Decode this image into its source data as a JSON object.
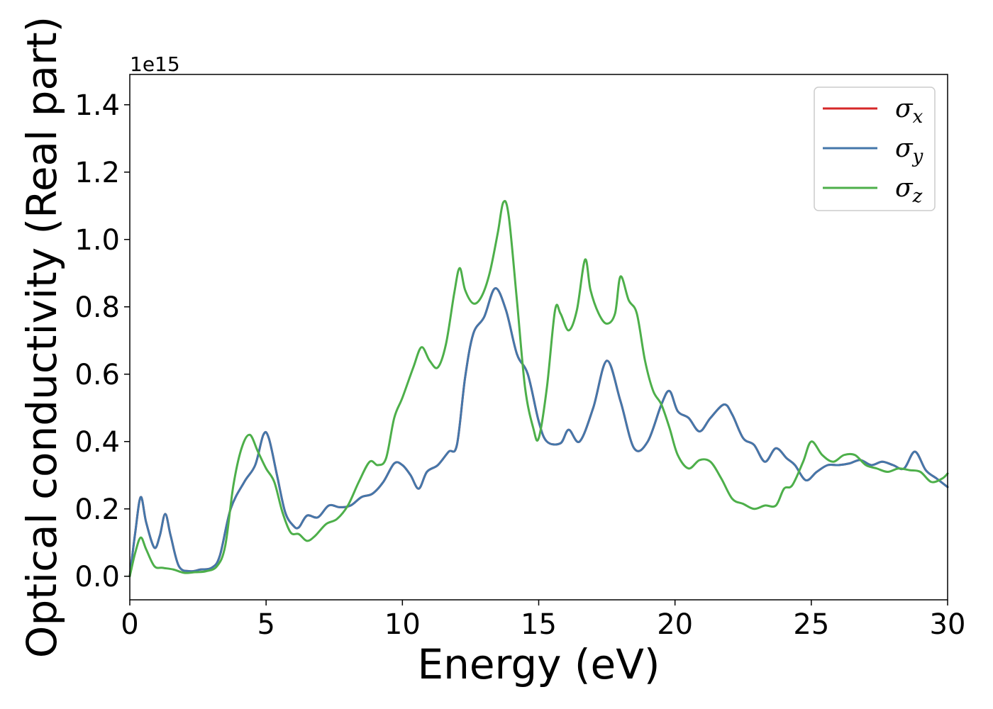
{
  "chart_data": {
    "type": "line",
    "title": "",
    "xlabel": "Energy (eV)",
    "ylabel": "Optical conductivity (Real part)",
    "y_offset_label": "1e15",
    "xlim": [
      0,
      30
    ],
    "ylim": [
      -0.07,
      1.49
    ],
    "x_ticks": [
      0,
      5,
      10,
      15,
      20,
      25,
      30
    ],
    "x_tick_labels": [
      "0",
      "5",
      "10",
      "15",
      "20",
      "25",
      "30"
    ],
    "y_ticks": [
      0.0,
      0.2,
      0.4,
      0.6,
      0.8,
      1.0,
      1.2,
      1.4
    ],
    "y_tick_labels": [
      "0.0",
      "0.2",
      "0.4",
      "0.6",
      "0.8",
      "1.0",
      "1.2",
      "1.4"
    ],
    "grid": false,
    "legend_position": "top-right",
    "series": [
      {
        "name": "σx",
        "legend_symbol": "σ",
        "legend_sub": "x",
        "color": "#d62728",
        "x": [
          0,
          0.2,
          0.4,
          0.6,
          0.9,
          1.1,
          1.3,
          1.5,
          1.8,
          2.2,
          2.6,
          3.0,
          3.3,
          3.7,
          4.2,
          4.6,
          4.9,
          5.1,
          5.4,
          5.7,
          6.0,
          6.2,
          6.5,
          6.9,
          7.3,
          7.7,
          8.1,
          8.5,
          8.9,
          9.3,
          9.7,
          10.0,
          10.3,
          10.6,
          10.9,
          11.3,
          11.7,
          12.0,
          12.3,
          12.6,
          13.0,
          13.4,
          13.8,
          14.2,
          14.6,
          15.0,
          15.3,
          15.8,
          16.1,
          16.5,
          17.0,
          17.5,
          18.0,
          18.5,
          19.0,
          19.5,
          19.8,
          20.1,
          20.5,
          20.9,
          21.3,
          21.8,
          22.1,
          22.5,
          22.9,
          23.3,
          23.7,
          24.1,
          24.4,
          24.8,
          25.2,
          25.6,
          26.0,
          26.4,
          26.8,
          27.2,
          27.6,
          28.0,
          28.4,
          28.8,
          29.2,
          29.6,
          30.0
        ],
        "values": [
          0.0,
          0.13,
          0.235,
          0.16,
          0.085,
          0.12,
          0.185,
          0.12,
          0.03,
          0.015,
          0.02,
          0.025,
          0.06,
          0.2,
          0.28,
          0.33,
          0.42,
          0.41,
          0.3,
          0.19,
          0.15,
          0.145,
          0.18,
          0.175,
          0.21,
          0.205,
          0.21,
          0.235,
          0.245,
          0.28,
          0.335,
          0.33,
          0.3,
          0.26,
          0.31,
          0.33,
          0.37,
          0.39,
          0.59,
          0.72,
          0.77,
          0.855,
          0.79,
          0.66,
          0.6,
          0.46,
          0.4,
          0.395,
          0.435,
          0.4,
          0.5,
          0.64,
          0.52,
          0.38,
          0.4,
          0.51,
          0.55,
          0.49,
          0.47,
          0.43,
          0.47,
          0.51,
          0.48,
          0.41,
          0.39,
          0.34,
          0.38,
          0.35,
          0.33,
          0.285,
          0.31,
          0.33,
          0.33,
          0.335,
          0.345,
          0.33,
          0.34,
          0.33,
          0.32,
          0.37,
          0.315,
          0.29,
          0.265
        ]
      },
      {
        "name": "σy",
        "legend_symbol": "σ",
        "legend_sub": "y",
        "color": "#4477aa",
        "x": [
          0,
          0.2,
          0.4,
          0.6,
          0.9,
          1.1,
          1.3,
          1.5,
          1.8,
          2.2,
          2.6,
          3.0,
          3.3,
          3.7,
          4.2,
          4.6,
          4.9,
          5.1,
          5.4,
          5.7,
          6.0,
          6.2,
          6.5,
          6.9,
          7.3,
          7.7,
          8.1,
          8.5,
          8.9,
          9.3,
          9.7,
          10.0,
          10.3,
          10.6,
          10.9,
          11.3,
          11.7,
          12.0,
          12.3,
          12.6,
          13.0,
          13.4,
          13.8,
          14.2,
          14.6,
          15.0,
          15.3,
          15.8,
          16.1,
          16.5,
          17.0,
          17.5,
          18.0,
          18.5,
          19.0,
          19.5,
          19.8,
          20.1,
          20.5,
          20.9,
          21.3,
          21.8,
          22.1,
          22.5,
          22.9,
          23.3,
          23.7,
          24.1,
          24.4,
          24.8,
          25.2,
          25.6,
          26.0,
          26.4,
          26.8,
          27.2,
          27.6,
          28.0,
          28.4,
          28.8,
          29.2,
          29.6,
          30.0
        ],
        "values": [
          0.0,
          0.13,
          0.235,
          0.16,
          0.085,
          0.12,
          0.185,
          0.12,
          0.03,
          0.015,
          0.02,
          0.025,
          0.06,
          0.2,
          0.28,
          0.33,
          0.42,
          0.41,
          0.3,
          0.19,
          0.15,
          0.145,
          0.18,
          0.175,
          0.21,
          0.205,
          0.21,
          0.235,
          0.245,
          0.28,
          0.335,
          0.33,
          0.3,
          0.26,
          0.31,
          0.33,
          0.37,
          0.39,
          0.59,
          0.72,
          0.77,
          0.855,
          0.79,
          0.66,
          0.6,
          0.46,
          0.4,
          0.395,
          0.435,
          0.4,
          0.5,
          0.64,
          0.52,
          0.38,
          0.4,
          0.51,
          0.55,
          0.49,
          0.47,
          0.43,
          0.47,
          0.51,
          0.48,
          0.41,
          0.39,
          0.34,
          0.38,
          0.35,
          0.33,
          0.285,
          0.31,
          0.33,
          0.33,
          0.335,
          0.345,
          0.33,
          0.34,
          0.33,
          0.32,
          0.37,
          0.315,
          0.29,
          0.265
        ]
      },
      {
        "name": "σz",
        "legend_symbol": "σ",
        "legend_sub": "z",
        "color": "#4daf4a",
        "x": [
          0,
          0.2,
          0.4,
          0.6,
          0.9,
          1.2,
          1.6,
          2.0,
          2.4,
          2.8,
          3.2,
          3.5,
          3.8,
          4.1,
          4.4,
          4.7,
          5.0,
          5.3,
          5.6,
          5.9,
          6.2,
          6.5,
          6.8,
          7.2,
          7.6,
          8.0,
          8.4,
          8.8,
          9.1,
          9.4,
          9.7,
          10.0,
          10.4,
          10.7,
          11.0,
          11.3,
          11.6,
          11.9,
          12.1,
          12.3,
          12.6,
          12.9,
          13.2,
          13.5,
          13.7,
          13.9,
          14.2,
          14.5,
          14.8,
          15.0,
          15.3,
          15.6,
          15.8,
          16.1,
          16.4,
          16.7,
          16.9,
          17.2,
          17.5,
          17.8,
          18.0,
          18.3,
          18.6,
          18.9,
          19.2,
          19.5,
          19.8,
          20.1,
          20.5,
          20.9,
          21.3,
          21.7,
          22.1,
          22.5,
          22.9,
          23.3,
          23.7,
          24.0,
          24.3,
          24.7,
          25.0,
          25.4,
          25.8,
          26.2,
          26.6,
          27.0,
          27.4,
          27.8,
          28.2,
          28.6,
          29.0,
          29.4,
          29.8,
          30.0
        ],
        "values": [
          0.0,
          0.07,
          0.115,
          0.08,
          0.03,
          0.025,
          0.02,
          0.01,
          0.012,
          0.015,
          0.03,
          0.09,
          0.27,
          0.38,
          0.42,
          0.37,
          0.32,
          0.28,
          0.19,
          0.13,
          0.125,
          0.105,
          0.12,
          0.155,
          0.17,
          0.21,
          0.28,
          0.34,
          0.33,
          0.35,
          0.47,
          0.53,
          0.62,
          0.68,
          0.64,
          0.62,
          0.69,
          0.84,
          0.915,
          0.85,
          0.81,
          0.83,
          0.9,
          1.02,
          1.11,
          1.07,
          0.82,
          0.56,
          0.44,
          0.41,
          0.56,
          0.79,
          0.78,
          0.73,
          0.79,
          0.94,
          0.85,
          0.78,
          0.75,
          0.78,
          0.89,
          0.82,
          0.78,
          0.64,
          0.55,
          0.51,
          0.44,
          0.36,
          0.32,
          0.345,
          0.34,
          0.29,
          0.23,
          0.215,
          0.2,
          0.21,
          0.21,
          0.26,
          0.27,
          0.34,
          0.4,
          0.36,
          0.34,
          0.36,
          0.36,
          0.33,
          0.32,
          0.31,
          0.32,
          0.315,
          0.31,
          0.28,
          0.29,
          0.305
        ]
      }
    ]
  }
}
